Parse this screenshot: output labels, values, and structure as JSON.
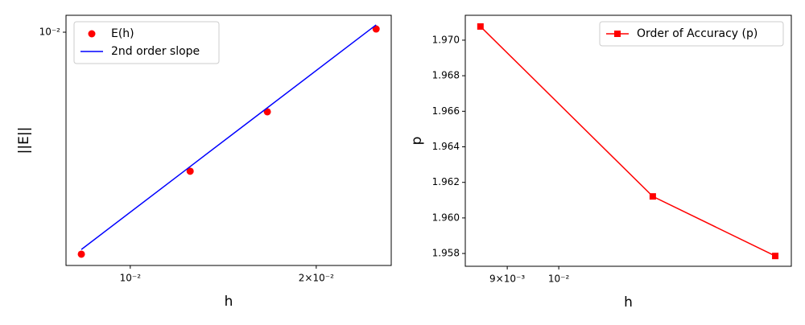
{
  "chart_data": [
    {
      "type": "line",
      "xlabel": "h",
      "ylabel": "||E||",
      "xscale": "log",
      "yscale": "log",
      "legend": "upper left",
      "x": [
        0.008333,
        0.0125,
        0.016667,
        0.025
      ],
      "series": [
        {
          "name": "E(h)",
          "color": "#ff0000",
          "style": "markers",
          "marker": "circle",
          "values": [
            0.001139,
            0.002565,
            0.00459,
            0.01032
          ]
        },
        {
          "name": "2nd order slope",
          "color": "#0000ff",
          "style": "line",
          "values": [
            0.001193,
            0.002685,
            0.004773,
            0.01074
          ]
        }
      ],
      "xlim": [
        0.00787,
        0.02645
      ],
      "ylim": [
        0.00102,
        0.0118
      ],
      "xticks": [
        {
          "value": 0.01,
          "label": "10⁻²"
        },
        {
          "value": 0.02,
          "label": "2×10⁻²"
        }
      ],
      "yticks": [
        {
          "value": 0.01,
          "label": "10⁻²"
        }
      ]
    },
    {
      "type": "line",
      "xlabel": "h",
      "ylabel": "p",
      "xscale": "log",
      "yscale": "linear",
      "legend": "upper right",
      "x": [
        0.00852,
        0.01212,
        0.01557
      ],
      "series": [
        {
          "name": "Order of Accuracy (p)",
          "color": "#ff0000",
          "style": "line-markers",
          "marker": "square",
          "values": [
            1.97077,
            1.96121,
            1.95786
          ]
        }
      ],
      "xlim": [
        0.00826,
        0.01609
      ],
      "ylim": [
        1.95728,
        1.9714
      ],
      "xticks": [
        {
          "value": 0.009,
          "label": "9×10⁻³"
        },
        {
          "value": 0.01,
          "label": "10⁻²"
        }
      ],
      "yticks": [
        {
          "value": 1.958,
          "label": "1.958"
        },
        {
          "value": 1.96,
          "label": "1.960"
        },
        {
          "value": 1.962,
          "label": "1.962"
        },
        {
          "value": 1.964,
          "label": "1.964"
        },
        {
          "value": 1.966,
          "label": "1.966"
        },
        {
          "value": 1.968,
          "label": "1.968"
        },
        {
          "value": 1.97,
          "label": "1.970"
        }
      ]
    }
  ]
}
